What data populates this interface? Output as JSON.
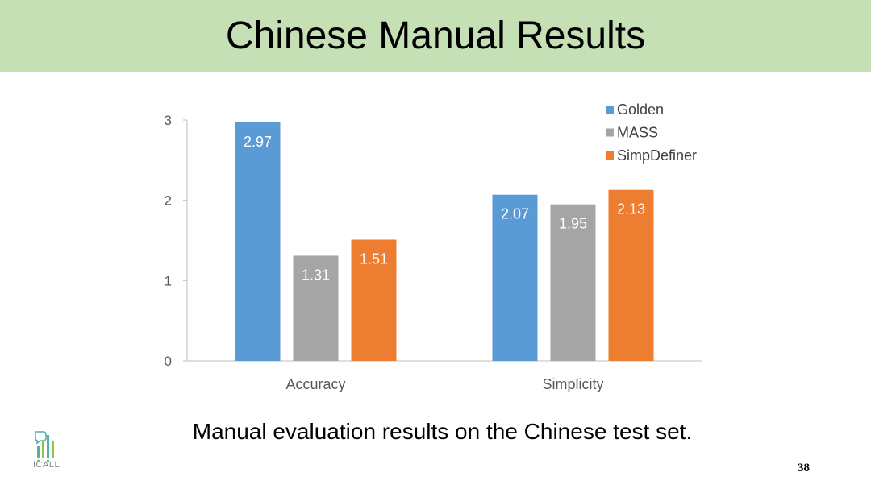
{
  "header": {
    "title": "Chinese Manual Results"
  },
  "caption": "Manual evaluation results on the Chinese test set.",
  "page_number": "38",
  "logo": {
    "text": "ICALL",
    "icon": "icall-logo-icon"
  },
  "colors": {
    "header_bg": "#c5e0b4",
    "Golden": "#5b9bd5",
    "MASS": "#a5a5a5",
    "SimpDefiner": "#ed7d31"
  },
  "chart_data": {
    "type": "bar",
    "categories": [
      "Accuracy",
      "Simplicity"
    ],
    "series": [
      {
        "name": "Golden",
        "values": [
          2.97,
          2.07
        ],
        "color": "#5b9bd5"
      },
      {
        "name": "MASS",
        "values": [
          1.31,
          1.95
        ],
        "color": "#a5a5a5"
      },
      {
        "name": "SimpDefiner",
        "values": [
          1.51,
          2.13
        ],
        "color": "#ed7d31"
      }
    ],
    "title": "",
    "xlabel": "",
    "ylabel": "",
    "ylim": [
      0,
      3
    ],
    "yticks": [
      0,
      1,
      2,
      3
    ],
    "grid": false,
    "legend": "top-right",
    "data_labels": true
  }
}
